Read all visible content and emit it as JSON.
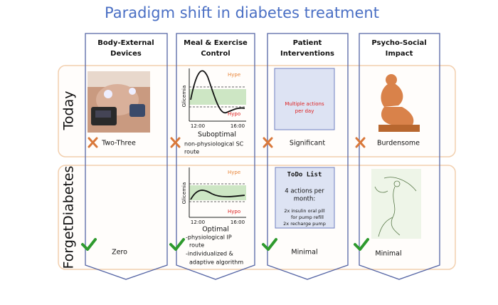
{
  "title": "Paradigm shift in diabetes treatment",
  "columns": [
    {
      "header": [
        "Body-External",
        "Devices"
      ]
    },
    {
      "header": [
        "Meal & Exercise",
        "Control"
      ]
    },
    {
      "header": [
        "Patient",
        "Interventions"
      ]
    },
    {
      "header": [
        "Psycho-Social",
        "Impact"
      ]
    }
  ],
  "rows": [
    {
      "label": "Today",
      "cells": [
        {
          "text": "Two-Three"
        },
        {
          "chart": {
            "y_label": "Glicemia",
            "upper": "Hype",
            "lower": "Hypo",
            "x_ticks": [
              "12:00",
              "16:00"
            ]
          },
          "text": "Suboptimal",
          "notes": [
            "non-physiological SC",
            "route"
          ]
        },
        {
          "box": [
            "Multiple actions",
            "per day"
          ],
          "text": "Significant"
        },
        {
          "text": "Burdensome"
        }
      ]
    },
    {
      "label": "ForgetDiabetes",
      "cells": [
        {
          "text": "Zero"
        },
        {
          "chart": {
            "y_label": "Glicemia",
            "upper": "Hype",
            "lower": "Hypo",
            "x_ticks": [
              "12:00",
              "16:00"
            ]
          },
          "text": "Optimal",
          "notes": [
            "-physiological IP",
            "route",
            "-individualized &",
            "adaptive algorithm"
          ]
        },
        {
          "box_title": "ToDo List",
          "box": [
            "4 actions per",
            "month:",
            "2x insulin oral pill",
            "for pump refill",
            "2x recharge pump"
          ],
          "text": "Minimal"
        },
        {
          "text": "Minimal"
        }
      ]
    }
  ]
}
